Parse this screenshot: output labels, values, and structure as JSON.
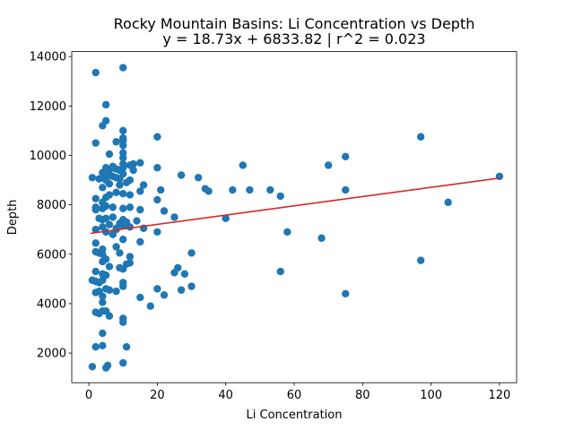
{
  "chart_data": {
    "type": "scatter",
    "title": "Rocky Mountain Basins: Li Concentration vs Depth",
    "subtitle": "y = 18.73x + 6833.82 | r^2 = 0.023",
    "xlabel": "Li Concentration",
    "ylabel": "Depth",
    "xlim": [
      -5,
      125
    ],
    "ylim": [
      800,
      14200
    ],
    "xticks": [
      0,
      20,
      40,
      60,
      80,
      100,
      120
    ],
    "yticks": [
      2000,
      4000,
      6000,
      8000,
      10000,
      12000,
      14000
    ],
    "xtick_labels": [
      "0",
      "20",
      "40",
      "60",
      "80",
      "100",
      "120"
    ],
    "ytick_labels": [
      "2000",
      "4000",
      "6000",
      "8000",
      "10000",
      "12000",
      "14000"
    ],
    "grid": false,
    "legend": "none",
    "point_color": "#1f77b4",
    "line_color": "#d62728",
    "regression": {
      "slope": 18.73,
      "intercept": 6833.82,
      "r2": 0.023,
      "x_range": [
        0.5,
        120
      ]
    },
    "points": [
      [
        1,
        1450
      ],
      [
        5,
        1400
      ],
      [
        5.5,
        1500
      ],
      [
        10,
        1600
      ],
      [
        2,
        2250
      ],
      [
        4,
        2300
      ],
      [
        11,
        2250
      ],
      [
        4,
        2800
      ],
      [
        2,
        3650
      ],
      [
        3,
        3600
      ],
      [
        5,
        3700
      ],
      [
        6,
        3500
      ],
      [
        10,
        3400
      ],
      [
        10,
        3250
      ],
      [
        18,
        3900
      ],
      [
        4,
        3700
      ],
      [
        2,
        4450
      ],
      [
        3,
        4500
      ],
      [
        4,
        4300
      ],
      [
        5,
        4600
      ],
      [
        6,
        4550
      ],
      [
        8,
        4500
      ],
      [
        10,
        4700
      ],
      [
        10,
        4850
      ],
      [
        15,
        4250
      ],
      [
        20,
        4600
      ],
      [
        22,
        4350
      ],
      [
        27,
        4550
      ],
      [
        30,
        4700
      ],
      [
        4,
        4950
      ],
      [
        5,
        5150
      ],
      [
        4,
        4050
      ],
      [
        1,
        4950
      ],
      [
        2,
        4900
      ],
      [
        3,
        4850
      ],
      [
        4,
        5200
      ],
      [
        2,
        5300
      ],
      [
        4,
        5700
      ],
      [
        5,
        5800
      ],
      [
        6,
        5500
      ],
      [
        9,
        5450
      ],
      [
        10,
        5400
      ],
      [
        11,
        5600
      ],
      [
        12,
        5900
      ],
      [
        12,
        5650
      ],
      [
        25,
        5250
      ],
      [
        26,
        5450
      ],
      [
        28,
        5200
      ],
      [
        2,
        6100
      ],
      [
        3,
        6050
      ],
      [
        4,
        6200
      ],
      [
        8,
        6300
      ],
      [
        10,
        6600
      ],
      [
        15,
        6500
      ],
      [
        2,
        6450
      ],
      [
        4,
        6000
      ],
      [
        9,
        6050
      ],
      [
        30,
        6050
      ],
      [
        56,
        5300
      ],
      [
        97,
        5750
      ],
      [
        75,
        4400
      ],
      [
        68,
        6650
      ],
      [
        58,
        6900
      ],
      [
        2,
        7000
      ],
      [
        4,
        7100
      ],
      [
        5,
        6900
      ],
      [
        6,
        7200
      ],
      [
        7,
        6800
      ],
      [
        8,
        7050
      ],
      [
        10,
        7150
      ],
      [
        12,
        7100
      ],
      [
        16,
        7050
      ],
      [
        20,
        6900
      ],
      [
        3,
        7450
      ],
      [
        4,
        7400
      ],
      [
        5,
        7450
      ],
      [
        7,
        7500
      ],
      [
        8,
        7000
      ],
      [
        9,
        7250
      ],
      [
        10,
        7400
      ],
      [
        11,
        7300
      ],
      [
        14,
        7350
      ],
      [
        22,
        7750
      ],
      [
        25,
        7500
      ],
      [
        40,
        7450
      ],
      [
        15,
        7800
      ],
      [
        2,
        7900
      ],
      [
        2,
        7800
      ],
      [
        4,
        7850
      ],
      [
        5,
        7950
      ],
      [
        7,
        7900
      ],
      [
        10,
        7850
      ],
      [
        12,
        7900
      ],
      [
        2,
        8250
      ],
      [
        4,
        8100
      ],
      [
        5,
        8300
      ],
      [
        6,
        8400
      ],
      [
        8,
        8500
      ],
      [
        10,
        8450
      ],
      [
        12,
        8400
      ],
      [
        15,
        8550
      ],
      [
        16,
        8800
      ],
      [
        20,
        8200
      ],
      [
        21,
        8600
      ],
      [
        34,
        8650
      ],
      [
        35,
        8550
      ],
      [
        42,
        8600
      ],
      [
        47,
        8600
      ],
      [
        53,
        8600
      ],
      [
        56,
        8350
      ],
      [
        75,
        8600
      ],
      [
        105,
        8100
      ],
      [
        4,
        8700
      ],
      [
        6,
        8850
      ],
      [
        9,
        8800
      ],
      [
        11,
        8900
      ],
      [
        3,
        9050
      ],
      [
        1,
        9100
      ],
      [
        4,
        9300
      ],
      [
        4,
        9100
      ],
      [
        5,
        9000
      ],
      [
        6,
        9200
      ],
      [
        7,
        9150
      ],
      [
        8,
        9100
      ],
      [
        9,
        9050
      ],
      [
        10,
        9250
      ],
      [
        12,
        9000
      ],
      [
        27,
        9200
      ],
      [
        32,
        9100
      ],
      [
        5,
        9500
      ],
      [
        6,
        9400
      ],
      [
        7,
        9550
      ],
      [
        8,
        9450
      ],
      [
        9,
        9400
      ],
      [
        10,
        9500
      ],
      [
        10,
        9650
      ],
      [
        12,
        9600
      ],
      [
        13,
        9650
      ],
      [
        13,
        9400
      ],
      [
        15,
        9700
      ],
      [
        20,
        9500
      ],
      [
        45,
        9600
      ],
      [
        70,
        9600
      ],
      [
        75,
        9950
      ],
      [
        120,
        9150
      ],
      [
        6,
        10050
      ],
      [
        10,
        9900
      ],
      [
        10,
        10100
      ],
      [
        2,
        10500
      ],
      [
        8,
        10550
      ],
      [
        10,
        10400
      ],
      [
        10,
        10600
      ],
      [
        10,
        10700
      ],
      [
        20,
        10750
      ],
      [
        97,
        10750
      ],
      [
        10,
        11000
      ],
      [
        4,
        11200
      ],
      [
        5,
        11400
      ],
      [
        5,
        12050
      ],
      [
        2,
        13350
      ],
      [
        10,
        13550
      ]
    ]
  }
}
